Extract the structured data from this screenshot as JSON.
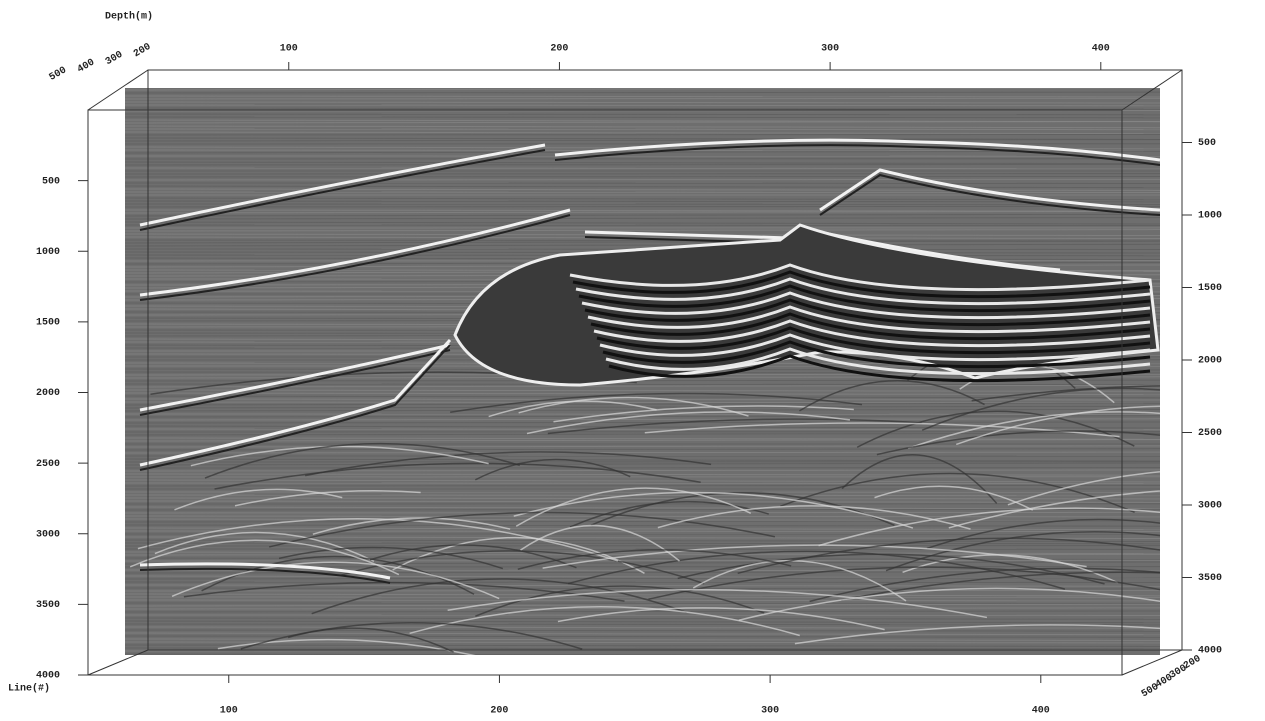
{
  "chart_data": {
    "type": "seismic-section",
    "ylabel": "Depth(m)",
    "xlabel": "Line(#)",
    "xlim": [
      48,
      430
    ],
    "xticks": [
      100,
      200,
      300,
      400
    ],
    "x2lim": [
      48,
      430
    ],
    "x2ticks": [
      100,
      200,
      300,
      400
    ],
    "ylim": [
      0,
      4000
    ],
    "yticks": [
      500,
      1000,
      1500,
      2000,
      2500,
      3000,
      3500,
      4000
    ],
    "y2lim": [
      0,
      4000
    ],
    "y2ticks": [
      500,
      1000,
      1500,
      2000,
      2500,
      3000,
      3500,
      4000
    ],
    "zlim": [
      200,
      520
    ],
    "zticks": [
      200,
      300,
      400,
      500
    ]
  }
}
